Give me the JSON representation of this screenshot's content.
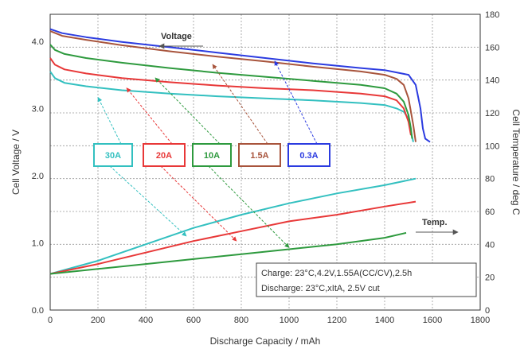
{
  "chart_data": {
    "type": "line",
    "xlabel": "Discharge Capacity / mAh",
    "ylabel": "Cell Voltage / V",
    "y2label": "Cell Temperature / deg C",
    "xlim": [
      0,
      1800
    ],
    "ylim": [
      0,
      4.4
    ],
    "y2lim": [
      0,
      180
    ],
    "x_ticks": [
      "0",
      "200",
      "400",
      "600",
      "800",
      "1000",
      "1200",
      "1400",
      "1600",
      "1800"
    ],
    "y_ticks": [
      "0.0",
      "1.0",
      "2.0",
      "3.0",
      "4.0"
    ],
    "y2_ticks": [
      "0",
      "20",
      "40",
      "60",
      "80",
      "100",
      "120",
      "140",
      "160",
      "180"
    ],
    "grid": true,
    "annotations": {
      "voltage": "Voltage",
      "temp": "Temp."
    },
    "note_lines": [
      "Charge: 23°C,4.2V,1.55A(CC/CV),2.5h",
      "Discharge: 23°C,xItA, 2.5V cut"
    ],
    "series": [
      {
        "name": "30A",
        "color": "#33c0c0",
        "voltage": [
          [
            0,
            3.55
          ],
          [
            20,
            3.45
          ],
          [
            60,
            3.38
          ],
          [
            150,
            3.33
          ],
          [
            300,
            3.27
          ],
          [
            500,
            3.22
          ],
          [
            700,
            3.18
          ],
          [
            900,
            3.15
          ],
          [
            1100,
            3.12
          ],
          [
            1300,
            3.08
          ],
          [
            1400,
            3.05
          ],
          [
            1450,
            3.0
          ],
          [
            1480,
            2.95
          ],
          [
            1500,
            2.85
          ],
          [
            1510,
            2.65
          ],
          [
            1520,
            2.5
          ]
        ],
        "temp": [
          [
            0,
            22
          ],
          [
            200,
            30
          ],
          [
            400,
            40
          ],
          [
            600,
            50
          ],
          [
            800,
            58
          ],
          [
            1000,
            65
          ],
          [
            1200,
            71
          ],
          [
            1400,
            76
          ],
          [
            1530,
            80
          ]
        ]
      },
      {
        "name": "20A",
        "color": "#e83838",
        "voltage": [
          [
            0,
            3.75
          ],
          [
            20,
            3.65
          ],
          [
            60,
            3.58
          ],
          [
            150,
            3.52
          ],
          [
            300,
            3.45
          ],
          [
            500,
            3.39
          ],
          [
            700,
            3.34
          ],
          [
            900,
            3.3
          ],
          [
            1100,
            3.27
          ],
          [
            1300,
            3.22
          ],
          [
            1400,
            3.18
          ],
          [
            1450,
            3.12
          ],
          [
            1480,
            3.0
          ],
          [
            1500,
            2.8
          ],
          [
            1510,
            2.6
          ]
        ],
        "temp": [
          [
            0,
            22
          ],
          [
            200,
            28
          ],
          [
            400,
            35
          ],
          [
            600,
            42
          ],
          [
            800,
            48
          ],
          [
            1000,
            54
          ],
          [
            1200,
            58
          ],
          [
            1400,
            63
          ],
          [
            1530,
            66
          ]
        ]
      },
      {
        "name": "10A",
        "color": "#2e9a3e",
        "voltage": [
          [
            0,
            3.95
          ],
          [
            20,
            3.87
          ],
          [
            60,
            3.81
          ],
          [
            150,
            3.75
          ],
          [
            300,
            3.68
          ],
          [
            500,
            3.6
          ],
          [
            700,
            3.53
          ],
          [
            900,
            3.47
          ],
          [
            1100,
            3.41
          ],
          [
            1300,
            3.35
          ],
          [
            1400,
            3.3
          ],
          [
            1450,
            3.22
          ],
          [
            1480,
            3.1
          ],
          [
            1500,
            2.9
          ],
          [
            1510,
            2.7
          ],
          [
            1515,
            2.55
          ]
        ],
        "temp": [
          [
            0,
            22
          ],
          [
            200,
            25
          ],
          [
            400,
            28
          ],
          [
            600,
            31
          ],
          [
            800,
            34
          ],
          [
            1000,
            37
          ],
          [
            1200,
            40
          ],
          [
            1400,
            44
          ],
          [
            1490,
            47
          ]
        ]
      },
      {
        "name": "1.5A",
        "color": "#a8543c",
        "voltage": [
          [
            0,
            4.15
          ],
          [
            50,
            4.08
          ],
          [
            150,
            4.02
          ],
          [
            300,
            3.94
          ],
          [
            500,
            3.85
          ],
          [
            700,
            3.77
          ],
          [
            900,
            3.7
          ],
          [
            1100,
            3.62
          ],
          [
            1300,
            3.55
          ],
          [
            1400,
            3.5
          ],
          [
            1450,
            3.44
          ],
          [
            1480,
            3.35
          ],
          [
            1500,
            3.15
          ],
          [
            1510,
            2.95
          ],
          [
            1520,
            2.75
          ],
          [
            1530,
            2.5
          ]
        ]
      },
      {
        "name": "0.3A",
        "color": "#2b3be0",
        "voltage": [
          [
            0,
            4.18
          ],
          [
            50,
            4.12
          ],
          [
            150,
            4.06
          ],
          [
            300,
            3.99
          ],
          [
            500,
            3.91
          ],
          [
            700,
            3.83
          ],
          [
            900,
            3.75
          ],
          [
            1100,
            3.67
          ],
          [
            1300,
            3.6
          ],
          [
            1400,
            3.57
          ],
          [
            1500,
            3.5
          ],
          [
            1530,
            3.35
          ],
          [
            1550,
            3.0
          ],
          [
            1560,
            2.7
          ],
          [
            1570,
            2.55
          ],
          [
            1590,
            2.5
          ]
        ]
      }
    ]
  }
}
